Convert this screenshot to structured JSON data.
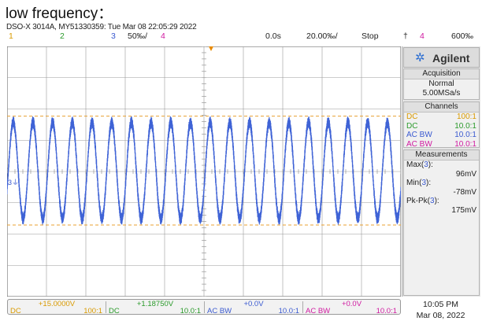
{
  "caption": "low frequency：",
  "header": {
    "model": "DSO-X 3014A, MY51330359: Tue Mar 08 22:05:29 2022",
    "ch1_num": "1",
    "ch2_num": "2",
    "ch3_num": "3",
    "ch3_scale": "50‰/",
    "ch4_num": "4",
    "time_delay": "0.0s",
    "time_scale": "20.00‰/",
    "run_status": "Stop",
    "trigger_symbol": "†",
    "trigger_channel": "4",
    "trigger_level": "600‰"
  },
  "panel": {
    "brand": "Agilent",
    "acquisition": {
      "title": "Acquisition",
      "mode": "Normal",
      "rate": "5.00MSa/s"
    },
    "channels": {
      "title": "Channels",
      "rows": [
        {
          "coupling": "DC",
          "probe": "100:1"
        },
        {
          "coupling": "DC",
          "probe": "10.0:1"
        },
        {
          "coupling": "AC BW",
          "probe": "10.0:1"
        },
        {
          "coupling": "AC BW",
          "probe": "10.0:1"
        }
      ]
    },
    "measurements": {
      "title": "Measurements",
      "max_label": "Max(",
      "max_ch": "3",
      "max_close": "):",
      "max_value": "96mV",
      "min_label": "Min(",
      "min_ch": "3",
      "min_close": "):",
      "min_value": "-78mV",
      "pkpk_label": "Pk-Pk(",
      "pkpk_ch": "3",
      "pkpk_close": "):",
      "pkpk_value": "175mV"
    }
  },
  "bottom": {
    "ch1": {
      "offset": "+15.0000V",
      "coupling": "DC",
      "probe": "100:1"
    },
    "ch2": {
      "offset": "+1.18750V",
      "coupling": "DC",
      "probe": "10.0:1"
    },
    "ch3": {
      "offset": "+0.0V",
      "coupling": "AC  BW",
      "probe": "10.0:1"
    },
    "ch4": {
      "offset": "+0.0V",
      "coupling": "AC  BW",
      "probe": "10.0:1"
    }
  },
  "clock": {
    "time": "10:05 PM",
    "date": "Mar 08, 2022"
  },
  "colors": {
    "ch1": "#d99a00",
    "ch2": "#2a9a2a",
    "ch3": "#3a5ad0",
    "ch4": "#d01aa0",
    "trace": "#3f63d6"
  },
  "waveform": {
    "cycles": 20,
    "max_mV": 96,
    "min_mV": -78,
    "scale_mV_per_div": 50,
    "noise_mV": 10
  }
}
